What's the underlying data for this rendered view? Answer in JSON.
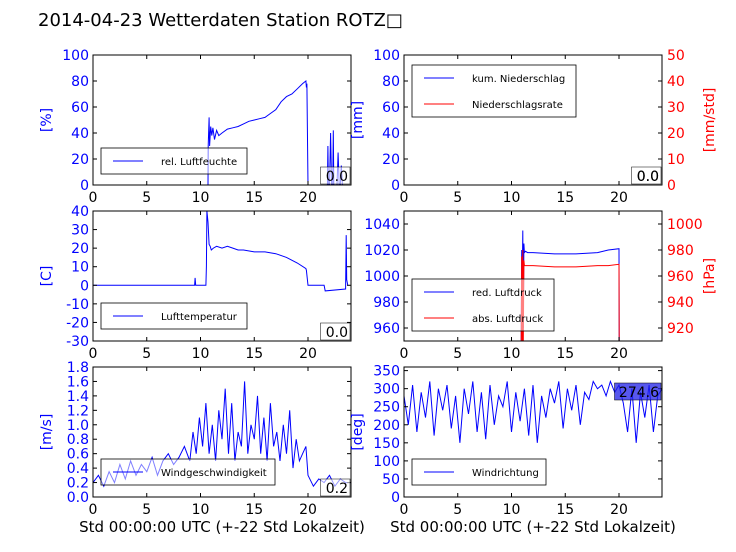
{
  "title": "2014-04-23 Wetterdaten Station ROTZ□",
  "xlabel": "Std 00:00:00 UTC (+-22 Std Lokalzeit)",
  "colors": {
    "blue": "#0000ff",
    "red": "#ff0000",
    "axis": "#000000",
    "legend_border": "#000000"
  },
  "chart_data": [
    {
      "id": "humidity",
      "type": "line",
      "ylabel": "[%]",
      "xlim": [
        0,
        24
      ],
      "ylim": [
        0,
        100
      ],
      "xticks": [
        0,
        5,
        10,
        15,
        20
      ],
      "yticks": [
        0,
        20,
        40,
        60,
        80,
        100
      ],
      "yticklabel_color": "blue",
      "legend": "lower-left",
      "value_label": "0.0",
      "series": [
        {
          "name": "rel. Luftfeuchte",
          "color": "blue",
          "x": [
            0,
            10.7,
            10.72,
            10.8,
            10.85,
            10.95,
            11.05,
            11.15,
            11.3,
            11.5,
            11.7,
            12,
            12.5,
            13,
            13.5,
            14,
            14.5,
            15,
            15.5,
            16,
            16.5,
            17,
            17.5,
            18,
            18.5,
            19,
            19.5,
            19.8,
            19.85,
            19.9,
            20.0,
            20.05,
            21.8,
            21.85,
            21.9,
            22.0,
            22.1,
            22.2,
            22.3,
            22.35,
            22.4,
            22.6,
            22.7,
            22.8,
            22.9,
            23.0,
            23.1,
            23.2,
            23.4
          ],
          "y": [
            0,
            0,
            30,
            52,
            30,
            45,
            38,
            44,
            35,
            42,
            38,
            40,
            43,
            44,
            45,
            47,
            49,
            50,
            51,
            52,
            55,
            58,
            64,
            68,
            70,
            74,
            78,
            80,
            75,
            78,
            0,
            0,
            0,
            30,
            0,
            0,
            40,
            0,
            0,
            42,
            0,
            0,
            0,
            25,
            0,
            0,
            15,
            0,
            0
          ]
        }
      ]
    },
    {
      "id": "precipitation",
      "type": "line",
      "ylabel": "[mm]",
      "ylabel2": "[mm/std]",
      "xlim": [
        0,
        24
      ],
      "ylim": [
        0,
        100
      ],
      "ylim2": [
        0,
        50
      ],
      "xticks": [
        0,
        5,
        10,
        15,
        20
      ],
      "yticks": [
        0,
        20,
        40,
        60,
        80,
        100
      ],
      "yticks2": [
        0,
        10,
        20,
        30,
        40,
        50
      ],
      "yticklabel_color": "blue",
      "yticklabel_color2": "red",
      "legend": "upper-left",
      "value_label": "0.0",
      "value_label2": "0.0",
      "series": [
        {
          "name": "kum. Niederschlag",
          "color": "blue",
          "axis": "left",
          "x": [
            0,
            24
          ],
          "y": [
            0,
            0
          ]
        },
        {
          "name": "Niederschlagsrate",
          "color": "red",
          "axis": "right",
          "x": [
            0,
            24
          ],
          "y": [
            0,
            0
          ]
        }
      ]
    },
    {
      "id": "temperature",
      "type": "line",
      "ylabel": "[C]",
      "xlim": [
        0,
        24
      ],
      "ylim": [
        -30,
        40
      ],
      "xticks": [
        0,
        5,
        10,
        15,
        20
      ],
      "yticks": [
        -30,
        -20,
        -10,
        0,
        10,
        20,
        30,
        40
      ],
      "yticklabel_color": "blue",
      "legend": "lower-left",
      "value_label": "0.0",
      "series": [
        {
          "name": "Lufttemperatur",
          "color": "blue",
          "x": [
            0,
            9.45,
            9.5,
            9.55,
            10.5,
            10.55,
            10.6,
            10.7,
            10.8,
            10.9,
            11.0,
            11.2,
            11.5,
            12,
            12.5,
            13,
            13.5,
            14,
            15,
            16,
            17,
            18,
            19,
            19.8,
            19.85,
            20.0,
            21.5,
            21.6,
            23.5,
            23.55,
            23.6,
            23.7
          ],
          "y": [
            0,
            0,
            4,
            0,
            0,
            10,
            40,
            34,
            22,
            21,
            19,
            20,
            21,
            20,
            21,
            20,
            19,
            19,
            18,
            18,
            17,
            15,
            12,
            9,
            8,
            0,
            0,
            -3,
            -2,
            27,
            3,
            0
          ]
        }
      ]
    },
    {
      "id": "pressure",
      "type": "line",
      "ylabel2": "[hPa]",
      "xlim": [
        0,
        24
      ],
      "ylim": [
        950,
        1050
      ],
      "ylim2": [
        910,
        1010
      ],
      "xticks": [
        0,
        5,
        10,
        15,
        20
      ],
      "yticks": [
        960,
        980,
        1000,
        1020,
        1040
      ],
      "yticks2": [
        920,
        940,
        960,
        980,
        1000
      ],
      "yticklabel_color": "blue",
      "yticklabel_color2": "red",
      "legend": "lower-left",
      "series": [
        {
          "name": "red. Luftdruck",
          "color": "blue",
          "axis": "left",
          "x": [
            10.9,
            10.95,
            11.0,
            11.05,
            11.1,
            11.15,
            11.2,
            11.3,
            11.5,
            12,
            14,
            16,
            18,
            19,
            20.0,
            20.02
          ],
          "y": [
            950,
            1020,
            1000,
            1035,
            960,
            1025,
            1018,
            1019,
            1018,
            1018,
            1017,
            1017,
            1018,
            1020,
            1021,
            950
          ]
        },
        {
          "name": "abs. Luftdruck",
          "color": "red",
          "axis": "right",
          "x": [
            10.9,
            10.95,
            11.0,
            11.05,
            11.1,
            11.15,
            11.2,
            11.3,
            11.5,
            12,
            14,
            16,
            18,
            19,
            20.0,
            20.02
          ],
          "y": [
            910,
            975,
            910,
            980,
            910,
            972,
            968,
            968,
            968,
            968,
            967,
            967,
            968,
            968,
            969,
            910
          ]
        }
      ]
    },
    {
      "id": "wind_speed",
      "type": "line",
      "ylabel": "[m/s]",
      "xlim": [
        0,
        24
      ],
      "ylim": [
        0,
        1.8
      ],
      "xticks": [
        0,
        5,
        10,
        15,
        20
      ],
      "yticks": [
        0,
        0.2,
        0.4,
        0.6,
        0.8,
        1.0,
        1.2,
        1.4,
        1.6,
        1.8
      ],
      "yticklabel_color": "blue",
      "legend": "lower-left",
      "value_label": "0.2",
      "series": [
        {
          "name": "Windgeschwindigkeit",
          "color": "blue",
          "x": [
            0,
            0.5,
            1,
            1.5,
            2,
            2.5,
            3,
            3.5,
            4,
            4.5,
            5,
            5.5,
            6,
            6.5,
            7,
            7.5,
            8,
            8.5,
            9,
            9.3,
            9.6,
            9.9,
            10.2,
            10.5,
            10.8,
            11.1,
            11.4,
            11.7,
            12,
            12.3,
            12.6,
            12.9,
            13.2,
            13.5,
            13.8,
            14.1,
            14.4,
            14.7,
            15,
            15.3,
            15.6,
            15.9,
            16.2,
            16.5,
            16.8,
            17.1,
            17.4,
            17.7,
            18,
            18.3,
            18.6,
            18.9,
            19.2,
            19.5,
            19.8,
            20,
            20.5,
            21,
            21.5,
            22,
            22.5,
            23,
            23.5,
            24
          ],
          "y": [
            0.2,
            0.3,
            0.15,
            0.35,
            0.2,
            0.45,
            0.25,
            0.5,
            0.3,
            0.45,
            0.35,
            0.55,
            0.3,
            0.5,
            0.6,
            0.45,
            0.55,
            0.7,
            0.5,
            0.9,
            0.6,
            1.1,
            0.7,
            1.3,
            0.6,
            1.0,
            0.5,
            1.2,
            0.8,
            1.5,
            0.6,
            1.3,
            0.5,
            0.9,
            0.7,
            1.6,
            0.6,
            1.0,
            0.8,
            1.4,
            0.6,
            1.1,
            0.5,
            1.3,
            0.7,
            0.9,
            0.5,
            1.0,
            0.6,
            1.2,
            0.4,
            0.8,
            0.5,
            0.6,
            0.7,
            0.3,
            0.15,
            0.25,
            0.2,
            0.3,
            0.15,
            0.25,
            0.2,
            0.2
          ]
        }
      ]
    },
    {
      "id": "wind_direction",
      "type": "line",
      "ylabel": "[deg]",
      "xlim": [
        0,
        24
      ],
      "ylim": [
        0,
        360
      ],
      "xticks": [
        0,
        5,
        10,
        15,
        20
      ],
      "yticks": [
        0,
        50,
        100,
        150,
        200,
        250,
        300,
        350
      ],
      "yticklabel_color": "blue",
      "legend": "lower-left",
      "value_label": "274.6",
      "series": [
        {
          "name": "Windrichtung",
          "color": "blue",
          "x": [
            0,
            0.4,
            0.8,
            1.2,
            1.6,
            2,
            2.4,
            2.8,
            3.2,
            3.6,
            4,
            4.4,
            4.8,
            5.2,
            5.6,
            6,
            6.4,
            6.8,
            7.2,
            7.6,
            8,
            8.4,
            8.8,
            9.2,
            9.6,
            10,
            10.4,
            10.8,
            11.2,
            11.6,
            12,
            12.4,
            12.8,
            13.2,
            13.6,
            14,
            14.4,
            14.8,
            15.2,
            15.6,
            16,
            16.4,
            16.8,
            17.2,
            17.6,
            18,
            18.4,
            18.8,
            19.2,
            19.6,
            20,
            20.4,
            20.8,
            21.2,
            21.6,
            22,
            22.4,
            22.8,
            23.2,
            23.6,
            24
          ],
          "y": [
            280,
            200,
            310,
            180,
            290,
            220,
            320,
            170,
            300,
            240,
            310,
            190,
            280,
            150,
            300,
            230,
            320,
            180,
            290,
            160,
            310,
            200,
            280,
            250,
            320,
            180,
            290,
            210,
            300,
            170,
            310,
            150,
            280,
            220,
            300,
            260,
            320,
            190,
            300,
            240,
            310,
            200,
            290,
            270,
            320,
            300,
            310,
            280,
            320,
            290,
            310,
            260,
            180,
            300,
            150,
            290,
            220,
            310,
            180,
            280,
            300
          ]
        }
      ]
    }
  ]
}
